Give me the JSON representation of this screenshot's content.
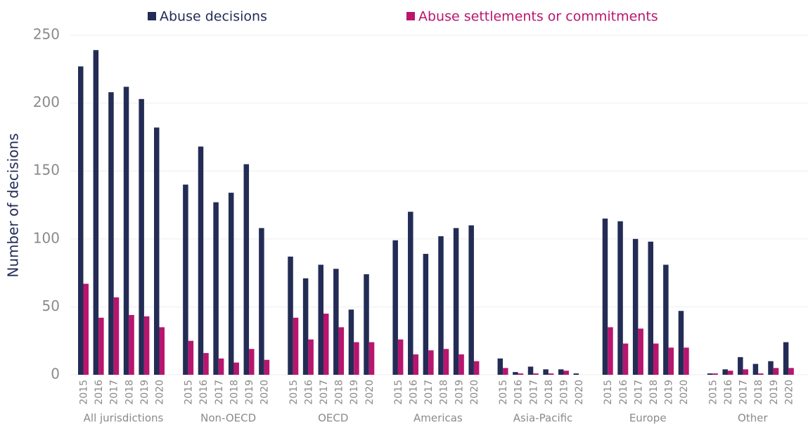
{
  "chart_data": {
    "type": "bar",
    "y_axis_label": "Number of decisions",
    "groups": [
      "All jurisdictions",
      "Non-OECD",
      "OECD",
      "Americas",
      "Asia-Pacific",
      "Europe",
      "Other"
    ],
    "categories": [
      "2015",
      "2016",
      "2017",
      "2018",
      "2019",
      "2020"
    ],
    "series": [
      {
        "name": "Abuse decisions",
        "color": "#232c55",
        "values": [
          [
            227,
            239,
            208,
            212,
            203,
            182
          ],
          [
            140,
            168,
            127,
            134,
            155,
            108
          ],
          [
            87,
            71,
            81,
            78,
            48,
            74
          ],
          [
            99,
            120,
            89,
            102,
            108,
            110
          ],
          [
            12,
            2,
            6,
            4,
            4,
            1
          ],
          [
            115,
            113,
            100,
            98,
            81,
            47
          ],
          [
            1,
            4,
            13,
            8,
            10,
            24
          ]
        ]
      },
      {
        "name": "Abuse settlements or commitments",
        "color": "#b8156f",
        "values": [
          [
            67,
            42,
            57,
            44,
            43,
            35
          ],
          [
            25,
            16,
            12,
            9,
            19,
            11
          ],
          [
            42,
            26,
            45,
            35,
            24,
            24
          ],
          [
            26,
            15,
            18,
            19,
            15,
            10
          ],
          [
            5,
            1,
            1,
            1,
            3,
            0
          ],
          [
            35,
            23,
            34,
            23,
            20,
            20
          ],
          [
            1,
            3,
            4,
            1,
            5,
            5
          ]
        ]
      }
    ],
    "ylim": [
      0,
      250
    ],
    "yticks": [
      0,
      50,
      100,
      150,
      200,
      250
    ],
    "grid": true,
    "legend": "top"
  }
}
